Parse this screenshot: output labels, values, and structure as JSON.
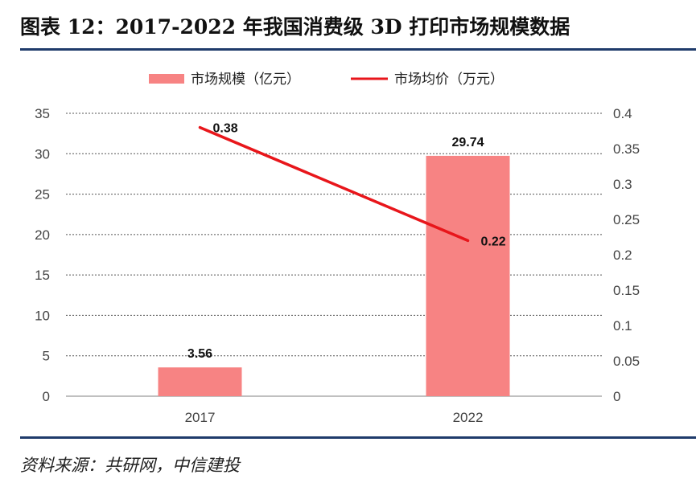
{
  "header": {
    "title": "图表 12：2017-2022 年我国消费级 3D 打印市场规模数据"
  },
  "footer": {
    "source": "资料来源：共研网，中信建投"
  },
  "chart_data": {
    "type": "bar",
    "categories": [
      "2017",
      "2022"
    ],
    "series": [
      {
        "name": "市场规模（亿元）",
        "type": "bar",
        "axis": "left",
        "color": "#f78383",
        "values": [
          3.56,
          29.74
        ],
        "labels": [
          "3.56",
          "29.74"
        ]
      },
      {
        "name": "市场均价（万元）",
        "type": "line",
        "axis": "right",
        "color": "#e8161b",
        "values": [
          0.38,
          0.22
        ],
        "labels": [
          "0.38",
          "0.22"
        ]
      }
    ],
    "y_left": {
      "lim": [
        0,
        35
      ],
      "ticks": [
        "0",
        "5",
        "10",
        "15",
        "20",
        "25",
        "30",
        "35"
      ]
    },
    "y_right": {
      "lim": [
        0,
        0.4
      ],
      "ticks": [
        "0",
        "0.05",
        "0.1",
        "0.15",
        "0.2",
        "0.25",
        "0.3",
        "0.35",
        "0.4"
      ]
    },
    "grid": "horizontal dashed",
    "legend_position": "top-center"
  }
}
